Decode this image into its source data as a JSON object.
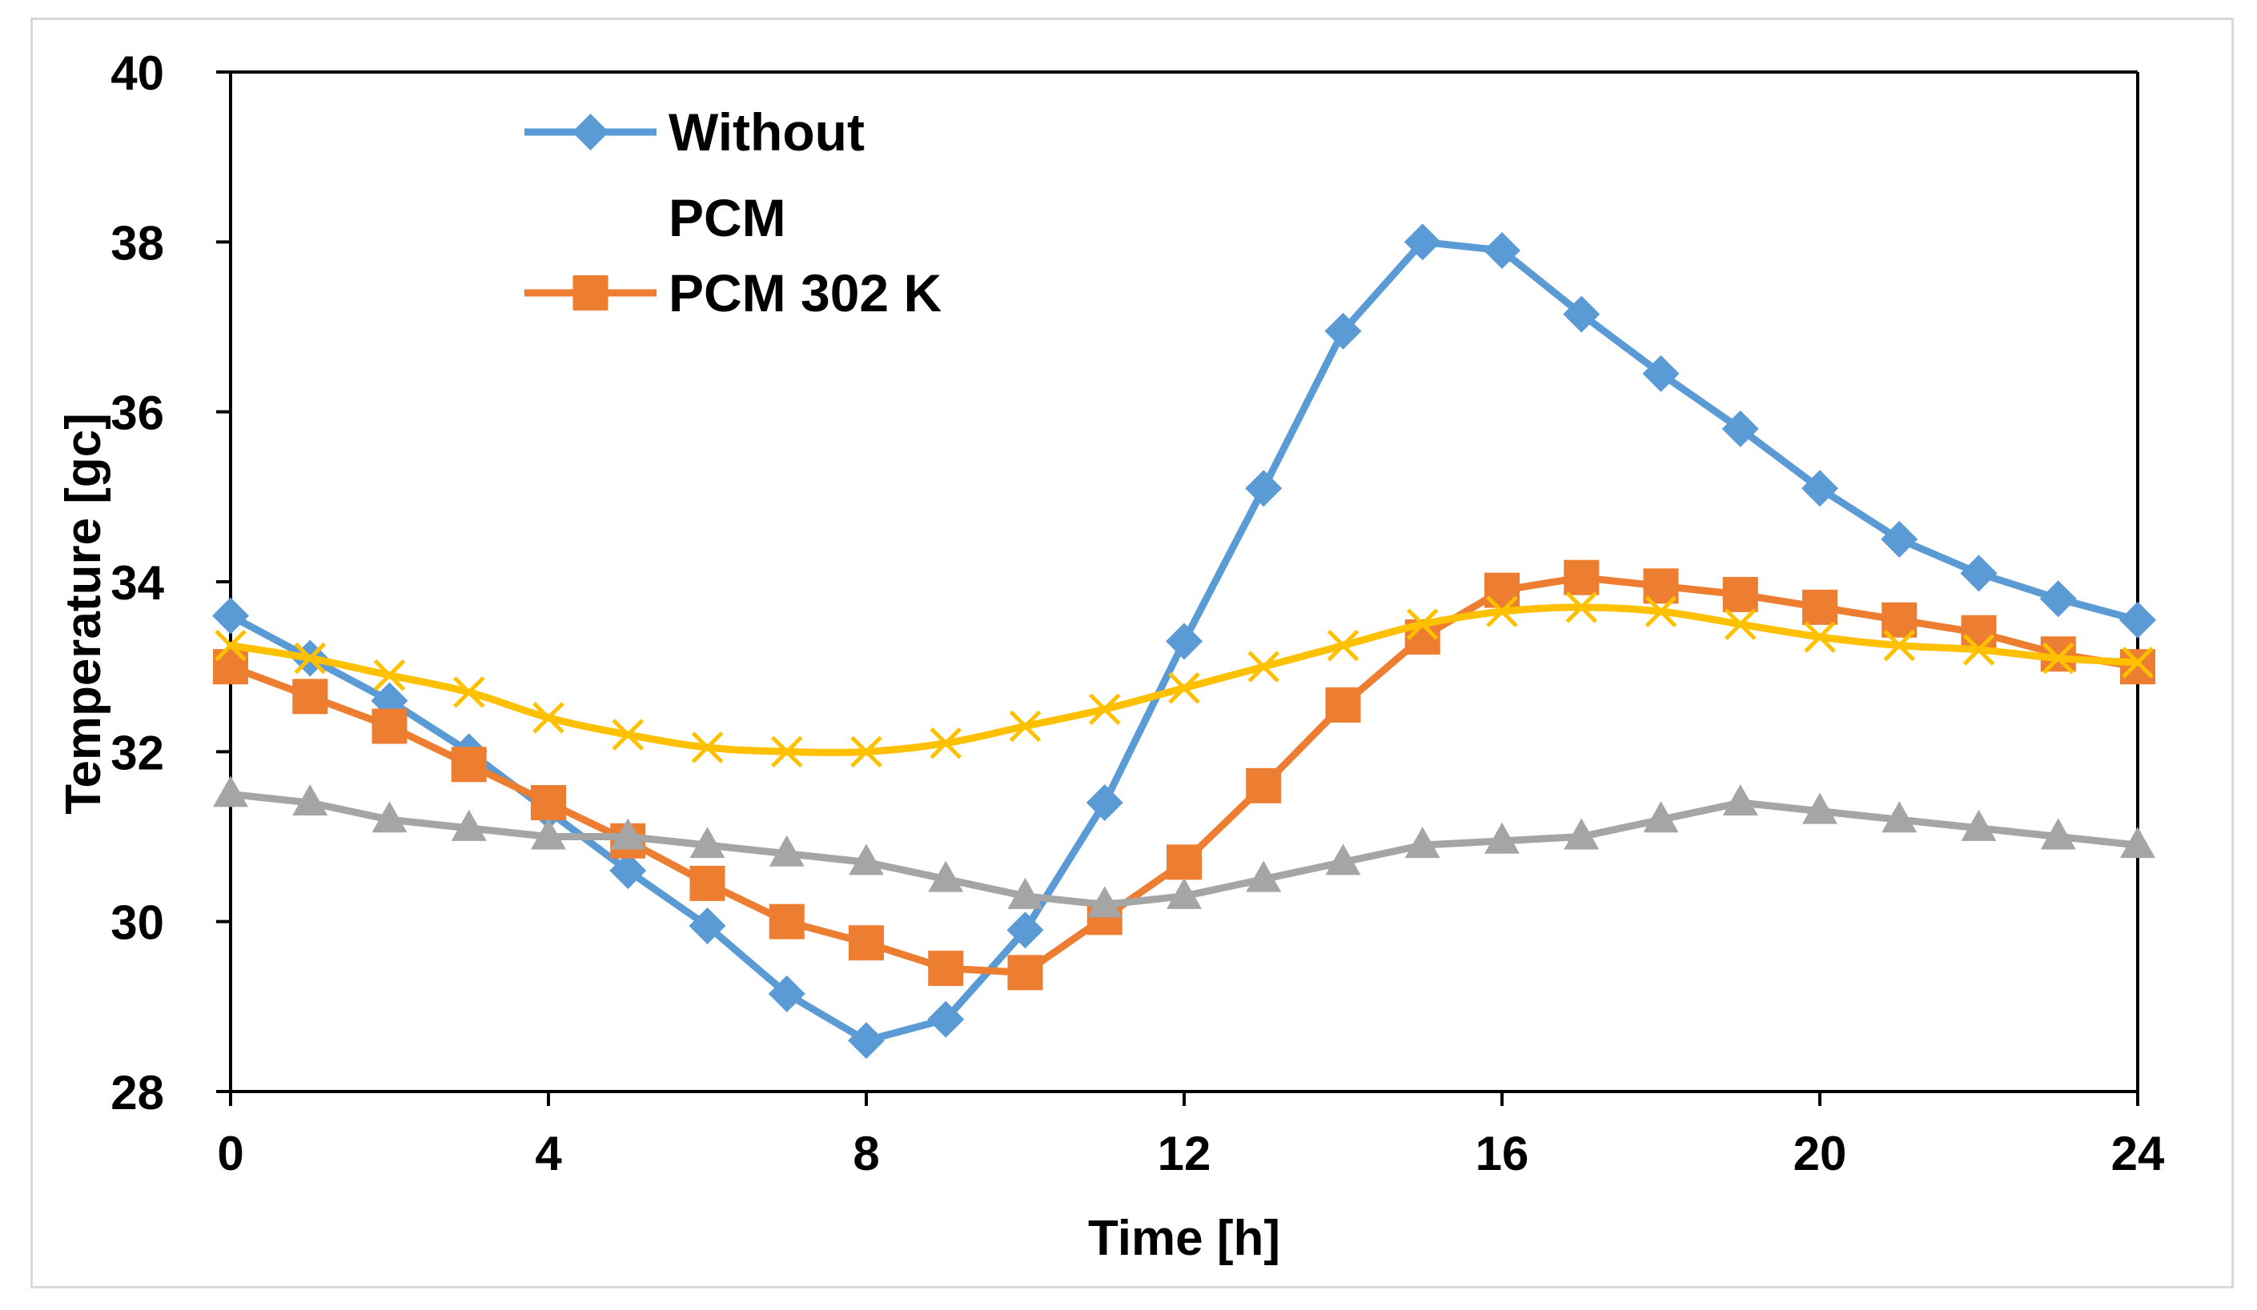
{
  "chart_data": {
    "type": "line",
    "title": "",
    "xlabel": "Time [h]",
    "ylabel": "Temperature [gc]",
    "xlim": [
      0,
      24
    ],
    "ylim": [
      28,
      40
    ],
    "xticks": [
      0,
      4,
      8,
      12,
      16,
      20,
      24
    ],
    "yticks": [
      28,
      30,
      32,
      34,
      36,
      38,
      40
    ],
    "xtick_labels": [
      "0",
      "4",
      "8",
      "12",
      "16",
      "20",
      "24"
    ],
    "ytick_labels": [
      "28",
      "30",
      "32",
      "34",
      "36",
      "38",
      "40"
    ],
    "grid": false,
    "legend_position": "top-left",
    "x": [
      0,
      1,
      2,
      3,
      4,
      5,
      6,
      7,
      8,
      9,
      10,
      11,
      12,
      13,
      14,
      15,
      16,
      17,
      18,
      19,
      20,
      21,
      22,
      23,
      24
    ],
    "series": [
      {
        "name": "Without PCM",
        "legend_lines": [
          "Without",
          "PCM"
        ],
        "color": "#5b9bd5",
        "marker": "diamond",
        "smooth": false,
        "in_legend": true,
        "values": [
          33.6,
          33.1,
          32.6,
          32.0,
          31.3,
          30.6,
          29.95,
          29.15,
          28.6,
          28.85,
          29.9,
          31.4,
          33.3,
          35.1,
          36.95,
          38.0,
          37.9,
          37.15,
          36.45,
          35.8,
          35.1,
          34.5,
          34.1,
          33.8,
          33.55
        ]
      },
      {
        "name": "PCM 302 K",
        "legend_lines": [
          "PCM 302 K"
        ],
        "color": "#ed7d31",
        "marker": "square",
        "smooth": false,
        "in_legend": true,
        "values": [
          33.0,
          32.65,
          32.3,
          31.85,
          31.4,
          30.95,
          30.45,
          30.0,
          29.75,
          29.45,
          29.4,
          30.05,
          30.7,
          31.6,
          32.55,
          33.35,
          33.9,
          34.05,
          33.95,
          33.85,
          33.7,
          33.55,
          33.4,
          33.15,
          33.0
        ]
      },
      {
        "name": "series-gray",
        "legend_lines": [],
        "color": "#a5a5a5",
        "marker": "triangle",
        "smooth": false,
        "in_legend": false,
        "values": [
          31.5,
          31.4,
          31.2,
          31.1,
          31.0,
          31.0,
          30.9,
          30.8,
          30.7,
          30.5,
          30.3,
          30.2,
          30.3,
          30.5,
          30.7,
          30.9,
          30.95,
          31.0,
          31.2,
          31.4,
          31.3,
          31.2,
          31.1,
          31.0,
          30.9
        ]
      },
      {
        "name": "series-yellow",
        "legend_lines": [],
        "color": "#ffc000",
        "marker": "x",
        "smooth": true,
        "in_legend": false,
        "values": [
          33.25,
          33.1,
          32.9,
          32.7,
          32.4,
          32.2,
          32.05,
          32.0,
          32.0,
          32.1,
          32.3,
          32.5,
          32.75,
          33.0,
          33.25,
          33.5,
          33.65,
          33.7,
          33.65,
          33.5,
          33.35,
          33.25,
          33.2,
          33.1,
          33.05
        ]
      }
    ]
  }
}
